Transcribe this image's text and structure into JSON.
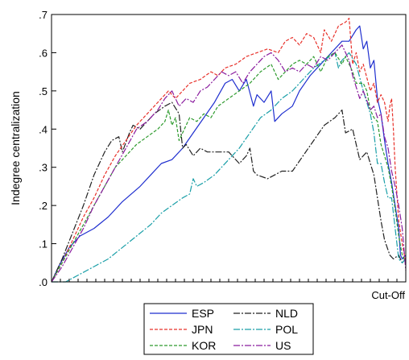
{
  "chart_data": {
    "type": "line",
    "title": "",
    "xlabel": "Cut-Off",
    "ylabel": "Indegree centralization",
    "ylim": [
      0,
      0.7
    ],
    "yticks": [
      {
        "value": 0.0,
        "label": ".0"
      },
      {
        "value": 0.1,
        "label": ".1"
      },
      {
        "value": 0.2,
        "label": ".2"
      },
      {
        "value": 0.3,
        "label": ".3"
      },
      {
        "value": 0.4,
        "label": ".4"
      },
      {
        "value": 0.5,
        "label": ".5"
      },
      {
        "value": 0.6,
        "label": ".6"
      },
      {
        "value": 0.7,
        "label": ".7"
      }
    ],
    "x_minor_ticks": 40,
    "grid": false,
    "legend_position": "bottom",
    "series": [
      {
        "name": "ESP",
        "color": "#1f2fcf",
        "dash": "solid",
        "points": [
          [
            0,
            0
          ],
          [
            0.02,
            0.04
          ],
          [
            0.05,
            0.09
          ],
          [
            0.08,
            0.12
          ],
          [
            0.12,
            0.14
          ],
          [
            0.16,
            0.17
          ],
          [
            0.2,
            0.21
          ],
          [
            0.25,
            0.25
          ],
          [
            0.28,
            0.28
          ],
          [
            0.31,
            0.31
          ],
          [
            0.34,
            0.32
          ],
          [
            0.37,
            0.35
          ],
          [
            0.4,
            0.39
          ],
          [
            0.43,
            0.43
          ],
          [
            0.46,
            0.47
          ],
          [
            0.49,
            0.52
          ],
          [
            0.51,
            0.53
          ],
          [
            0.53,
            0.5
          ],
          [
            0.55,
            0.53
          ],
          [
            0.57,
            0.46
          ],
          [
            0.58,
            0.49
          ],
          [
            0.6,
            0.47
          ],
          [
            0.62,
            0.5
          ],
          [
            0.63,
            0.42
          ],
          [
            0.65,
            0.44
          ],
          [
            0.68,
            0.46
          ],
          [
            0.7,
            0.5
          ],
          [
            0.73,
            0.54
          ],
          [
            0.76,
            0.57
          ],
          [
            0.79,
            0.6
          ],
          [
            0.82,
            0.63
          ],
          [
            0.84,
            0.63
          ],
          [
            0.86,
            0.66
          ],
          [
            0.87,
            0.67
          ],
          [
            0.88,
            0.61
          ],
          [
            0.89,
            0.63
          ],
          [
            0.9,
            0.56
          ],
          [
            0.91,
            0.58
          ],
          [
            0.92,
            0.48
          ],
          [
            0.93,
            0.44
          ],
          [
            0.94,
            0.37
          ],
          [
            0.95,
            0.31
          ],
          [
            0.96,
            0.26
          ],
          [
            0.97,
            0.2
          ],
          [
            0.98,
            0.14
          ],
          [
            0.985,
            0.07
          ],
          [
            0.99,
            0.06
          ],
          [
            1.0,
            0.07
          ]
        ]
      },
      {
        "name": "NLD",
        "color": "#222222",
        "dash": "longdashdot",
        "points": [
          [
            0,
            0
          ],
          [
            0.03,
            0.06
          ],
          [
            0.06,
            0.13
          ],
          [
            0.09,
            0.2
          ],
          [
            0.12,
            0.28
          ],
          [
            0.15,
            0.34
          ],
          [
            0.17,
            0.37
          ],
          [
            0.19,
            0.38
          ],
          [
            0.2,
            0.34
          ],
          [
            0.22,
            0.39
          ],
          [
            0.23,
            0.41
          ],
          [
            0.25,
            0.4
          ],
          [
            0.27,
            0.42
          ],
          [
            0.29,
            0.44
          ],
          [
            0.32,
            0.46
          ],
          [
            0.34,
            0.47
          ],
          [
            0.36,
            0.44
          ],
          [
            0.37,
            0.35
          ],
          [
            0.38,
            0.36
          ],
          [
            0.4,
            0.33
          ],
          [
            0.42,
            0.35
          ],
          [
            0.44,
            0.34
          ],
          [
            0.47,
            0.34
          ],
          [
            0.5,
            0.34
          ],
          [
            0.53,
            0.31
          ],
          [
            0.55,
            0.33
          ],
          [
            0.56,
            0.35
          ],
          [
            0.57,
            0.29
          ],
          [
            0.58,
            0.28
          ],
          [
            0.61,
            0.27
          ],
          [
            0.65,
            0.29
          ],
          [
            0.68,
            0.29
          ],
          [
            0.71,
            0.33
          ],
          [
            0.74,
            0.37
          ],
          [
            0.77,
            0.41
          ],
          [
            0.8,
            0.43
          ],
          [
            0.82,
            0.45
          ],
          [
            0.83,
            0.39
          ],
          [
            0.85,
            0.4
          ],
          [
            0.87,
            0.32
          ],
          [
            0.89,
            0.34
          ],
          [
            0.91,
            0.28
          ],
          [
            0.92,
            0.22
          ],
          [
            0.93,
            0.16
          ],
          [
            0.94,
            0.11
          ],
          [
            0.955,
            0.07
          ],
          [
            0.965,
            0.06
          ],
          [
            0.98,
            0.07
          ],
          [
            0.99,
            0.05
          ],
          [
            1.0,
            0.06
          ]
        ]
      },
      {
        "name": "JPN",
        "color": "#e8312a",
        "dash": "dashed",
        "points": [
          [
            0,
            0
          ],
          [
            0.03,
            0.05
          ],
          [
            0.06,
            0.11
          ],
          [
            0.09,
            0.17
          ],
          [
            0.12,
            0.22
          ],
          [
            0.15,
            0.28
          ],
          [
            0.18,
            0.33
          ],
          [
            0.21,
            0.37
          ],
          [
            0.24,
            0.41
          ],
          [
            0.27,
            0.44
          ],
          [
            0.3,
            0.47
          ],
          [
            0.33,
            0.5
          ],
          [
            0.35,
            0.48
          ],
          [
            0.37,
            0.5
          ],
          [
            0.39,
            0.52
          ],
          [
            0.42,
            0.53
          ],
          [
            0.45,
            0.55
          ],
          [
            0.47,
            0.54
          ],
          [
            0.49,
            0.56
          ],
          [
            0.52,
            0.57
          ],
          [
            0.55,
            0.59
          ],
          [
            0.58,
            0.6
          ],
          [
            0.61,
            0.61
          ],
          [
            0.64,
            0.6
          ],
          [
            0.66,
            0.63
          ],
          [
            0.68,
            0.64
          ],
          [
            0.7,
            0.62
          ],
          [
            0.72,
            0.65
          ],
          [
            0.74,
            0.64
          ],
          [
            0.76,
            0.6
          ],
          [
            0.77,
            0.66
          ],
          [
            0.79,
            0.63
          ],
          [
            0.81,
            0.67
          ],
          [
            0.83,
            0.68
          ],
          [
            0.84,
            0.69
          ],
          [
            0.85,
            0.57
          ],
          [
            0.86,
            0.6
          ],
          [
            0.87,
            0.55
          ],
          [
            0.88,
            0.57
          ],
          [
            0.9,
            0.5
          ],
          [
            0.91,
            0.52
          ],
          [
            0.92,
            0.47
          ],
          [
            0.93,
            0.49
          ],
          [
            0.94,
            0.47
          ],
          [
            0.95,
            0.42
          ],
          [
            0.955,
            0.46
          ],
          [
            0.96,
            0.48
          ],
          [
            0.965,
            0.4
          ],
          [
            0.97,
            0.3
          ],
          [
            0.98,
            0.16
          ],
          [
            0.99,
            0.1
          ],
          [
            1.0,
            0.05
          ]
        ]
      },
      {
        "name": "POL",
        "color": "#1a9fa8",
        "dash": "longdashdot",
        "points": [
          [
            0,
            0
          ],
          [
            0.04,
            0.0
          ],
          [
            0.08,
            0.02
          ],
          [
            0.12,
            0.04
          ],
          [
            0.16,
            0.06
          ],
          [
            0.2,
            0.09
          ],
          [
            0.24,
            0.12
          ],
          [
            0.28,
            0.15
          ],
          [
            0.31,
            0.18
          ],
          [
            0.34,
            0.2
          ],
          [
            0.37,
            0.22
          ],
          [
            0.39,
            0.23
          ],
          [
            0.4,
            0.27
          ],
          [
            0.41,
            0.25
          ],
          [
            0.43,
            0.26
          ],
          [
            0.46,
            0.28
          ],
          [
            0.5,
            0.32
          ],
          [
            0.53,
            0.35
          ],
          [
            0.56,
            0.39
          ],
          [
            0.59,
            0.43
          ],
          [
            0.62,
            0.45
          ],
          [
            0.65,
            0.48
          ],
          [
            0.68,
            0.5
          ],
          [
            0.71,
            0.53
          ],
          [
            0.74,
            0.56
          ],
          [
            0.77,
            0.58
          ],
          [
            0.8,
            0.6
          ],
          [
            0.81,
            0.56
          ],
          [
            0.82,
            0.58
          ],
          [
            0.84,
            0.6
          ],
          [
            0.86,
            0.57
          ],
          [
            0.88,
            0.5
          ],
          [
            0.89,
            0.47
          ],
          [
            0.9,
            0.44
          ],
          [
            0.91,
            0.39
          ],
          [
            0.92,
            0.31
          ],
          [
            0.93,
            0.31
          ],
          [
            0.94,
            0.26
          ],
          [
            0.95,
            0.22
          ],
          [
            0.96,
            0.22
          ],
          [
            0.97,
            0.14
          ],
          [
            0.98,
            0.06
          ],
          [
            0.99,
            0.05
          ],
          [
            1.0,
            0.06
          ]
        ]
      },
      {
        "name": "KOR",
        "color": "#2e9b2e",
        "dash": "dashed",
        "points": [
          [
            0,
            0
          ],
          [
            0.03,
            0.05
          ],
          [
            0.06,
            0.1
          ],
          [
            0.09,
            0.15
          ],
          [
            0.12,
            0.2
          ],
          [
            0.15,
            0.25
          ],
          [
            0.18,
            0.3
          ],
          [
            0.21,
            0.33
          ],
          [
            0.24,
            0.36
          ],
          [
            0.27,
            0.38
          ],
          [
            0.3,
            0.4
          ],
          [
            0.32,
            0.42
          ],
          [
            0.33,
            0.45
          ],
          [
            0.34,
            0.41
          ],
          [
            0.35,
            0.43
          ],
          [
            0.36,
            0.37
          ],
          [
            0.37,
            0.39
          ],
          [
            0.39,
            0.43
          ],
          [
            0.41,
            0.42
          ],
          [
            0.43,
            0.44
          ],
          [
            0.45,
            0.43
          ],
          [
            0.47,
            0.46
          ],
          [
            0.5,
            0.48
          ],
          [
            0.53,
            0.5
          ],
          [
            0.56,
            0.52
          ],
          [
            0.59,
            0.55
          ],
          [
            0.62,
            0.57
          ],
          [
            0.64,
            0.53
          ],
          [
            0.66,
            0.55
          ],
          [
            0.68,
            0.57
          ],
          [
            0.7,
            0.58
          ],
          [
            0.72,
            0.57
          ],
          [
            0.74,
            0.59
          ],
          [
            0.76,
            0.55
          ],
          [
            0.78,
            0.59
          ],
          [
            0.8,
            0.6
          ],
          [
            0.82,
            0.57
          ],
          [
            0.83,
            0.59
          ],
          [
            0.85,
            0.55
          ],
          [
            0.86,
            0.52
          ],
          [
            0.88,
            0.52
          ],
          [
            0.89,
            0.5
          ],
          [
            0.9,
            0.45
          ],
          [
            0.91,
            0.43
          ],
          [
            0.92,
            0.42
          ],
          [
            0.93,
            0.36
          ],
          [
            0.94,
            0.33
          ],
          [
            0.95,
            0.3
          ],
          [
            0.96,
            0.25
          ],
          [
            0.97,
            0.19
          ],
          [
            0.98,
            0.12
          ],
          [
            0.99,
            0.07
          ],
          [
            1.0,
            0.05
          ]
        ]
      },
      {
        "name": "US",
        "color": "#8a1c9e",
        "dash": "longdashdot",
        "points": [
          [
            0,
            0
          ],
          [
            0.03,
            0.04
          ],
          [
            0.06,
            0.09
          ],
          [
            0.09,
            0.14
          ],
          [
            0.12,
            0.2
          ],
          [
            0.15,
            0.25
          ],
          [
            0.18,
            0.3
          ],
          [
            0.21,
            0.35
          ],
          [
            0.24,
            0.4
          ],
          [
            0.27,
            0.42
          ],
          [
            0.3,
            0.45
          ],
          [
            0.32,
            0.48
          ],
          [
            0.34,
            0.5
          ],
          [
            0.36,
            0.46
          ],
          [
            0.38,
            0.48
          ],
          [
            0.4,
            0.47
          ],
          [
            0.42,
            0.5
          ],
          [
            0.44,
            0.51
          ],
          [
            0.46,
            0.53
          ],
          [
            0.48,
            0.55
          ],
          [
            0.5,
            0.54
          ],
          [
            0.52,
            0.55
          ],
          [
            0.54,
            0.52
          ],
          [
            0.56,
            0.55
          ],
          [
            0.58,
            0.57
          ],
          [
            0.6,
            0.59
          ],
          [
            0.62,
            0.6
          ],
          [
            0.64,
            0.58
          ],
          [
            0.66,
            0.55
          ],
          [
            0.68,
            0.56
          ],
          [
            0.7,
            0.55
          ],
          [
            0.72,
            0.57
          ],
          [
            0.74,
            0.56
          ],
          [
            0.76,
            0.59
          ],
          [
            0.78,
            0.58
          ],
          [
            0.8,
            0.6
          ],
          [
            0.82,
            0.62
          ],
          [
            0.84,
            0.58
          ],
          [
            0.85,
            0.54
          ],
          [
            0.87,
            0.48
          ],
          [
            0.88,
            0.5
          ],
          [
            0.9,
            0.45
          ],
          [
            0.91,
            0.46
          ],
          [
            0.92,
            0.43
          ],
          [
            0.93,
            0.44
          ],
          [
            0.94,
            0.38
          ],
          [
            0.95,
            0.35
          ],
          [
            0.96,
            0.29
          ],
          [
            0.97,
            0.25
          ],
          [
            0.98,
            0.2
          ],
          [
            0.99,
            0.14
          ],
          [
            1.0,
            0.03
          ]
        ]
      }
    ],
    "legend": [
      {
        "name": "ESP",
        "color": "#1f2fcf",
        "dash": "solid"
      },
      {
        "name": "NLD",
        "color": "#222222",
        "dash": "longdashdot"
      },
      {
        "name": "JPN",
        "color": "#e8312a",
        "dash": "dashed"
      },
      {
        "name": "POL",
        "color": "#1a9fa8",
        "dash": "longdashdot"
      },
      {
        "name": "KOR",
        "color": "#2e9b2e",
        "dash": "dashed"
      },
      {
        "name": "US",
        "color": "#8a1c9e",
        "dash": "longdashdot"
      }
    ]
  }
}
